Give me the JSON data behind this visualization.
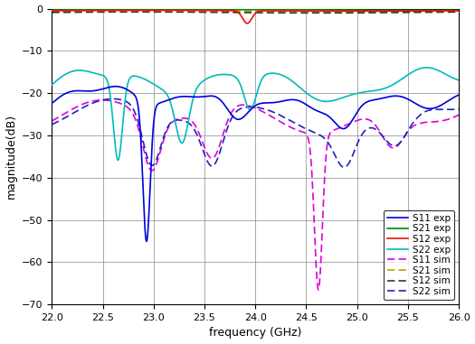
{
  "xlim": [
    22,
    26
  ],
  "ylim": [
    -70,
    0
  ],
  "xlabel": "frequency (GHz)",
  "ylabel": "magnitude(dB)",
  "xticks": [
    22,
    22.5,
    23,
    23.5,
    24,
    24.5,
    25,
    25.5,
    26
  ],
  "yticks": [
    0,
    -10,
    -20,
    -30,
    -40,
    -50,
    -60,
    -70
  ],
  "figsize": [
    5.25,
    3.81
  ],
  "dpi": 100,
  "colors": {
    "S11_exp": "#0000dd",
    "S21_exp": "#008800",
    "S12_exp": "#ee1100",
    "S22_exp": "#00bbbb",
    "S11_sim": "#dd00dd",
    "S21_sim": "#aaaa00",
    "S12_sim": "#333333",
    "S22_sim": "#2222bb"
  },
  "legend_entries": [
    "S11 exp",
    "S21 exp",
    "S12 exp",
    "S22 exp",
    "S11 sim",
    "S21 sim",
    "S12 sim",
    "S22 sim"
  ]
}
